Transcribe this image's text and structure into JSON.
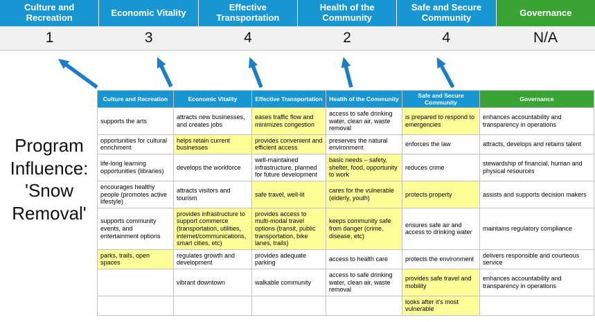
{
  "title": "Program Influence: 'Snow Removal'",
  "colors": {
    "header_blue": "#1896d2",
    "header_green": "#3aa336",
    "highlight_yellow": "#ffff99",
    "arrow_blue": "#1a7dc5",
    "score_bg": "#f1f1f1"
  },
  "columns": [
    {
      "label": "Culture and Recreation",
      "score": "1",
      "green": false
    },
    {
      "label": "Economic Vitality",
      "score": "3",
      "green": false
    },
    {
      "label": "Effective Transportation",
      "score": "4",
      "green": false
    },
    {
      "label": "Health of the Community",
      "score": "2",
      "green": false
    },
    {
      "label": "Safe and Secure Community",
      "score": "4",
      "green": false
    },
    {
      "label": "Governance",
      "score": "N/A",
      "green": true
    }
  ],
  "matrix": {
    "rows": [
      [
        {
          "text": "supports the arts",
          "highlight": false
        },
        {
          "text": "attracts new businesses, and creates jobs",
          "highlight": false
        },
        {
          "text": "eases traffic flow and minimizes congestion",
          "highlight": true
        },
        {
          "text": "access to safe drinking water, clean air, waste removal",
          "highlight": false
        },
        {
          "text": "is prepared to respond to emergencies",
          "highlight": true
        },
        {
          "text": "enhances accountability and transparency in operations",
          "highlight": false
        }
      ],
      [
        {
          "text": "opportunities for cultural enrichment",
          "highlight": false
        },
        {
          "text": "helps retain current businesses",
          "highlight": true
        },
        {
          "text": "provides convenient and efficient access",
          "highlight": true
        },
        {
          "text": "preserves the natural environment",
          "highlight": false
        },
        {
          "text": "enforces the law",
          "highlight": false
        },
        {
          "text": "attracts, develops and retains talent",
          "highlight": false
        }
      ],
      [
        {
          "text": "life-long learning opportunities (libraries)",
          "highlight": false
        },
        {
          "text": "develops the workforce",
          "highlight": false
        },
        {
          "text": "well-maintained infrastructure, planned for future development",
          "highlight": false
        },
        {
          "text": "basic needs – safety, shelter, food, opportunity to work",
          "highlight": true
        },
        {
          "text": "reduces crime",
          "highlight": false
        },
        {
          "text": "stewardship of financial, human and physical resources",
          "highlight": false
        }
      ],
      [
        {
          "text": "encourages healthy people (promotes active lifestyle)",
          "highlight": false
        },
        {
          "text": "attracts visitors and tourism",
          "highlight": false
        },
        {
          "text": "safe travel, well-lit",
          "highlight": true
        },
        {
          "text": "cares for the vulnerable (elderly, youth)",
          "highlight": true
        },
        {
          "text": "protects property",
          "highlight": true
        },
        {
          "text": "assists and supports decision makers",
          "highlight": false
        }
      ],
      [
        {
          "text": "supports community events, and entertainment options",
          "highlight": false
        },
        {
          "text": "provides infrastructure to support commerce (transportation, utilities, internet/communications, smart cities, etc)",
          "highlight": true
        },
        {
          "text": "provides access to multi-modal travel options (transit, public transportation, bike lanes, trails)",
          "highlight": true
        },
        {
          "text": "keeps community safe from danger (crime, disease, etc)",
          "highlight": true
        },
        {
          "text": "ensures safe air and access to drinking water",
          "highlight": false
        },
        {
          "text": "maintains regulatory compliance",
          "highlight": false
        }
      ],
      [
        {
          "text": "parks, trails, open spaces",
          "highlight": true
        },
        {
          "text": "regulates growth and development",
          "highlight": false
        },
        {
          "text": "provides adequate parking",
          "highlight": false
        },
        {
          "text": "access to health care",
          "highlight": false
        },
        {
          "text": "protects the environment",
          "highlight": false
        },
        {
          "text": "delivers responsible and courteous service",
          "highlight": false
        }
      ],
      [
        {
          "text": "",
          "highlight": false
        },
        {
          "text": "vibrant downtown",
          "highlight": false
        },
        {
          "text": "walkable community",
          "highlight": false
        },
        {
          "text": "access to safe drinking water, clean air, waste removal",
          "highlight": false
        },
        {
          "text": "provides safe travel and mobility",
          "highlight": true
        },
        {
          "text": "enhances accountability and transparency in operations",
          "highlight": false
        }
      ],
      [
        {
          "text": "",
          "highlight": false
        },
        {
          "text": "",
          "highlight": false
        },
        {
          "text": "",
          "highlight": false
        },
        {
          "text": "",
          "highlight": false
        },
        {
          "text": "looks after it's most vulnerable",
          "highlight": true
        },
        {
          "text": "",
          "highlight": false
        }
      ]
    ]
  }
}
